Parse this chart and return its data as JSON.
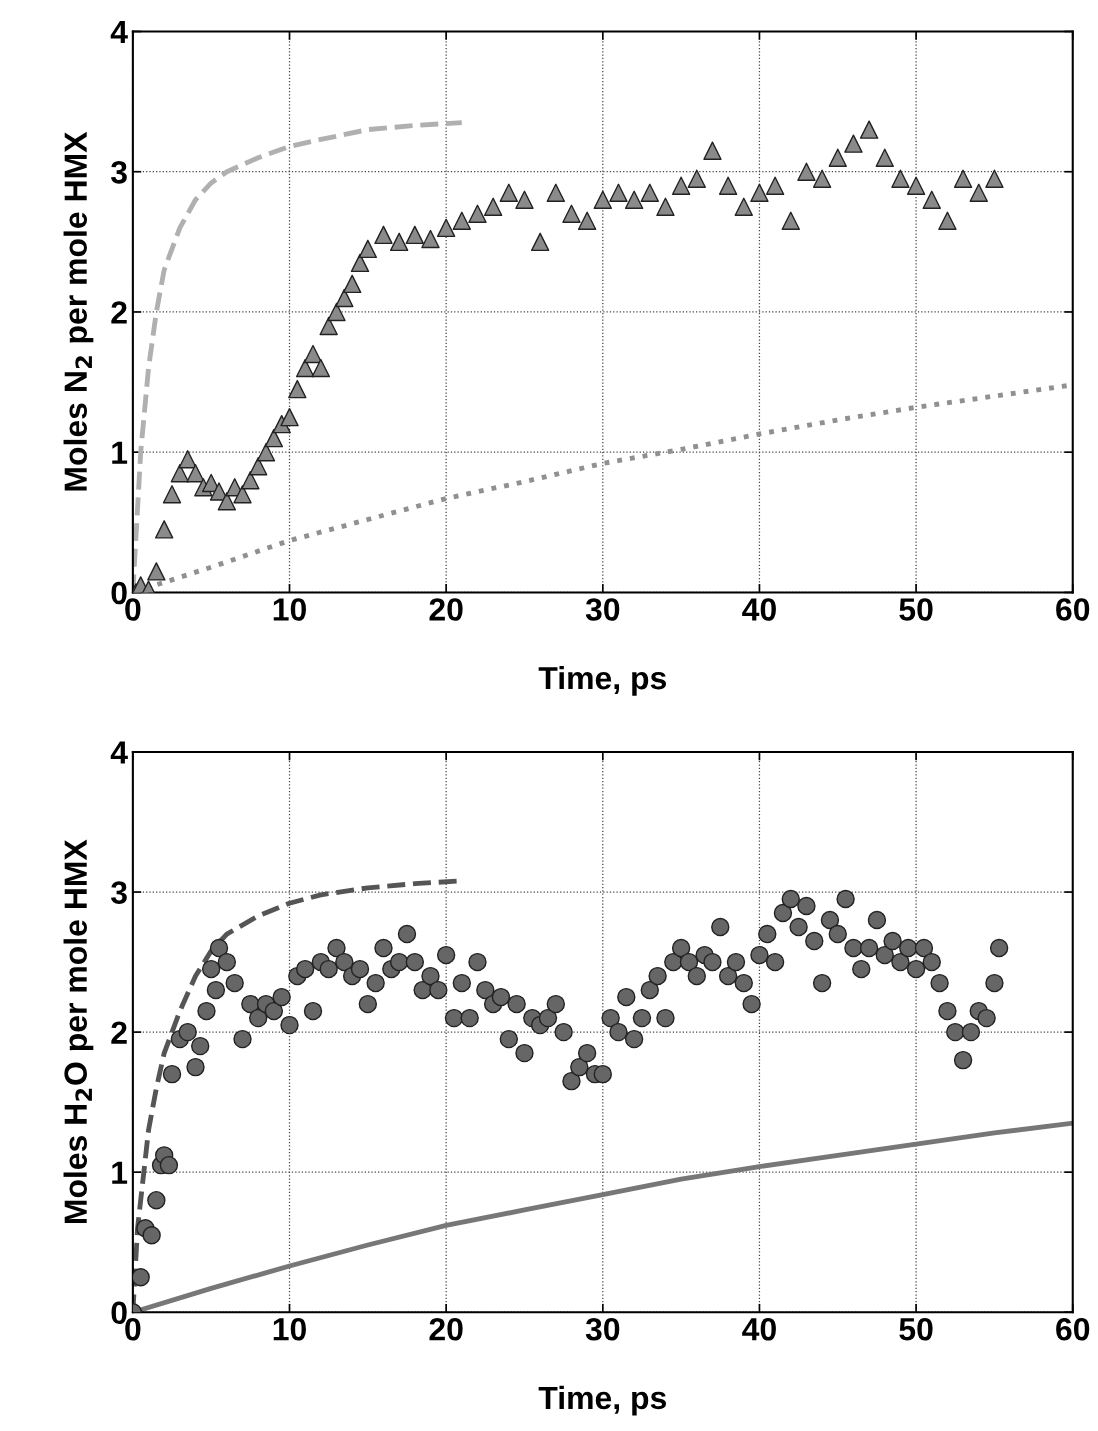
{
  "chart_data": [
    {
      "type": "scatter",
      "xlabel": "Time, ps",
      "ylabel": "Moles N$_{2}$ per mole HMX",
      "xlim": [
        0,
        60
      ],
      "ylim": [
        0,
        4
      ],
      "xticks": [
        0,
        10,
        20,
        30,
        40,
        50,
        60
      ],
      "yticks": [
        0,
        1,
        2,
        3,
        4
      ],
      "grid": true,
      "legend": false,
      "series": [
        {
          "type": "line",
          "line_style": "dashed",
          "color": "#b0b0b0",
          "x": [
            0,
            0.5,
            1,
            1.5,
            2,
            3,
            4,
            5,
            6,
            8,
            10,
            12,
            15,
            18,
            21
          ],
          "values": [
            0,
            1.0,
            1.6,
            2.0,
            2.3,
            2.6,
            2.8,
            2.92,
            3.0,
            3.1,
            3.18,
            3.23,
            3.3,
            3.33,
            3.35
          ]
        },
        {
          "type": "line",
          "line_style": "dotted",
          "color": "#909090",
          "x": [
            0,
            5,
            10,
            15,
            20,
            25,
            30,
            35,
            40,
            45,
            50,
            55,
            60
          ],
          "values": [
            0,
            0.18,
            0.37,
            0.52,
            0.67,
            0.79,
            0.92,
            1.02,
            1.13,
            1.23,
            1.32,
            1.4,
            1.48
          ]
        },
        {
          "marker": "triangle",
          "color": "#8a8a8a",
          "x": [
            0.2,
            0.5,
            1,
            1.5,
            2,
            2.5,
            3,
            3.5,
            4,
            4.5,
            5,
            5.5,
            6,
            6.5,
            7,
            7.5,
            8,
            8.5,
            9,
            9.5,
            10,
            10.5,
            11,
            11.5,
            12,
            12.5,
            13,
            13.5,
            14,
            14.5,
            15,
            16,
            17,
            18,
            19,
            20,
            21,
            22,
            23,
            24,
            25,
            26,
            27,
            28,
            29,
            30,
            31,
            32,
            33,
            34,
            35,
            36,
            37,
            38,
            39,
            40,
            41,
            42,
            43,
            44,
            45,
            46,
            47,
            48,
            49,
            50,
            51,
            52,
            53,
            54,
            55
          ],
          "values": [
            0.0,
            0.05,
            0.02,
            0.15,
            0.45,
            0.7,
            0.85,
            0.95,
            0.85,
            0.75,
            0.78,
            0.72,
            0.65,
            0.75,
            0.7,
            0.8,
            0.9,
            1.0,
            1.1,
            1.2,
            1.25,
            1.45,
            1.6,
            1.7,
            1.6,
            1.9,
            2.0,
            2.1,
            2.2,
            2.35,
            2.45,
            2.55,
            2.5,
            2.55,
            2.52,
            2.6,
            2.65,
            2.7,
            2.75,
            2.85,
            2.8,
            2.5,
            2.85,
            2.7,
            2.65,
            2.8,
            2.85,
            2.8,
            2.85,
            2.75,
            2.9,
            2.95,
            3.15,
            2.9,
            2.75,
            2.85,
            2.9,
            2.65,
            3.0,
            2.95,
            3.1,
            3.2,
            3.3,
            3.1,
            2.95,
            2.9,
            2.8,
            2.65,
            2.95,
            2.85,
            2.95
          ]
        }
      ]
    },
    {
      "type": "scatter",
      "xlabel": "Time, ps",
      "ylabel": "Moles H$_{2}$O per mole HMX",
      "xlim": [
        0,
        60
      ],
      "ylim": [
        0,
        4
      ],
      "xticks": [
        0,
        10,
        20,
        30,
        40,
        50,
        60
      ],
      "yticks": [
        0,
        1,
        2,
        3,
        4
      ],
      "grid": true,
      "legend": false,
      "series": [
        {
          "type": "line",
          "line_style": "dashed",
          "color": "#555555",
          "x": [
            0,
            0.3,
            0.7,
            1,
            1.5,
            2,
            3,
            4,
            5,
            6,
            8,
            10,
            12,
            15,
            18,
            21
          ],
          "values": [
            0,
            0.6,
            1.0,
            1.3,
            1.6,
            1.85,
            2.15,
            2.4,
            2.58,
            2.7,
            2.83,
            2.92,
            2.98,
            3.03,
            3.06,
            3.08
          ]
        },
        {
          "type": "line",
          "line_style": "solid",
          "color": "#777777",
          "x": [
            0,
            5,
            10,
            15,
            20,
            25,
            30,
            35,
            40,
            45,
            50,
            55,
            60
          ],
          "values": [
            0,
            0.17,
            0.33,
            0.48,
            0.62,
            0.73,
            0.84,
            0.95,
            1.04,
            1.12,
            1.2,
            1.28,
            1.35
          ]
        },
        {
          "marker": "circle",
          "color": "#666666",
          "x": [
            0,
            0.5,
            0.8,
            1.2,
            1.5,
            1.8,
            2,
            2.3,
            2.5,
            3,
            3.5,
            4,
            4.3,
            4.7,
            5,
            5.3,
            5.5,
            6,
            6.5,
            7,
            7.5,
            8,
            8.5,
            9,
            9.5,
            10,
            10.5,
            11,
            11.5,
            12,
            12.5,
            13,
            13.5,
            14,
            14.5,
            15,
            15.5,
            16,
            16.5,
            17,
            17.5,
            18,
            18.5,
            19,
            19.5,
            20,
            20.5,
            21,
            21.5,
            22,
            22.5,
            23,
            23.5,
            24,
            24.5,
            25,
            25.5,
            26,
            26.5,
            27,
            27.5,
            28,
            28.5,
            29,
            29.5,
            30,
            30.5,
            31,
            31.5,
            32,
            32.5,
            33,
            33.5,
            34,
            34.5,
            35,
            35.5,
            36,
            36.5,
            37,
            37.5,
            38,
            38.5,
            39,
            39.5,
            40,
            40.5,
            41,
            41.5,
            42,
            42.5,
            43,
            43.5,
            44,
            44.5,
            45,
            45.5,
            46,
            46.5,
            47,
            47.5,
            48,
            48.5,
            49,
            49.5,
            50,
            50.5,
            51,
            51.5,
            52,
            52.5,
            53,
            53.5,
            54,
            54.5,
            55,
            55.3
          ],
          "values": [
            0,
            0.25,
            0.6,
            0.55,
            0.8,
            1.05,
            1.12,
            1.05,
            1.7,
            1.95,
            2.0,
            1.75,
            1.9,
            2.15,
            2.45,
            2.3,
            2.6,
            2.5,
            2.35,
            1.95,
            2.2,
            2.1,
            2.2,
            2.15,
            2.25,
            2.05,
            2.4,
            2.45,
            2.15,
            2.5,
            2.45,
            2.6,
            2.5,
            2.4,
            2.45,
            2.2,
            2.35,
            2.6,
            2.45,
            2.5,
            2.7,
            2.5,
            2.3,
            2.4,
            2.3,
            2.55,
            2.1,
            2.35,
            2.1,
            2.5,
            2.3,
            2.2,
            2.25,
            1.95,
            2.2,
            1.85,
            2.1,
            2.05,
            2.1,
            2.2,
            2.0,
            1.65,
            1.75,
            1.85,
            1.7,
            1.7,
            2.1,
            2.0,
            2.25,
            1.95,
            2.1,
            2.3,
            2.4,
            2.1,
            2.5,
            2.6,
            2.5,
            2.4,
            2.55,
            2.5,
            2.75,
            2.4,
            2.5,
            2.35,
            2.2,
            2.55,
            2.7,
            2.5,
            2.85,
            2.95,
            2.75,
            2.9,
            2.65,
            2.35,
            2.8,
            2.7,
            2.95,
            2.6,
            2.45,
            2.6,
            2.8,
            2.55,
            2.65,
            2.5,
            2.6,
            2.45,
            2.6,
            2.5,
            2.35,
            2.15,
            2.0,
            1.8,
            2.0,
            2.15,
            2.1,
            2.35,
            2.6
          ]
        }
      ]
    }
  ]
}
